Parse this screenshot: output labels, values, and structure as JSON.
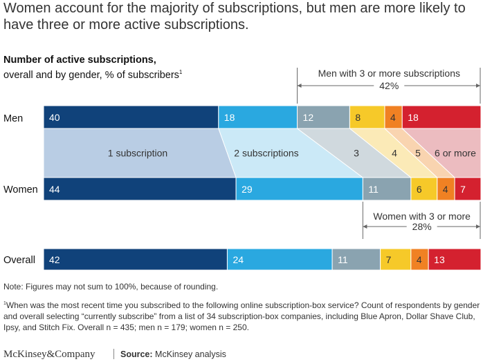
{
  "header": {
    "title": "Women account for the majority of subscriptions, but men are more likely to have three or more active subscriptions.",
    "subtitle_bold": "Number of active subscriptions,",
    "subtitle_rest": "overall and by gender,",
    "subtitle_unit": "% of subscribers",
    "subtitle_sup": "1"
  },
  "chart_data": {
    "type": "bar",
    "orientation": "horizontal",
    "stacked": true,
    "unit": "% of subscribers",
    "xlim": [
      0,
      100
    ],
    "categories": [
      "Men",
      "Women",
      "Overall"
    ],
    "series": [
      {
        "name": "1 subscription",
        "values": [
          40,
          44,
          42
        ],
        "color": "#10427a"
      },
      {
        "name": "2 subscriptions",
        "values": [
          18,
          29,
          24
        ],
        "color": "#2aa8e0"
      },
      {
        "name": "3",
        "values": [
          12,
          11,
          11
        ],
        "color": "#8aa3b0"
      },
      {
        "name": "4",
        "values": [
          8,
          6,
          7
        ],
        "color": "#f6c929"
      },
      {
        "name": "5",
        "values": [
          4,
          4,
          4
        ],
        "color": "#f08123"
      },
      {
        "name": "6 or more",
        "values": [
          18,
          7,
          13
        ],
        "color": "#d4212f"
      }
    ],
    "band_colors": [
      "#b9cde4",
      "#cbe9f7",
      "#d0d9de",
      "#fbeab7",
      "#f9d4b0",
      "#ecbcc0"
    ],
    "annotations": [
      {
        "label": "Men with 3 or more subscriptions",
        "value": "42%",
        "category": "Men"
      },
      {
        "label": "Women with 3 or more",
        "value": "28%",
        "category": "Women"
      }
    ]
  },
  "notes": {
    "note": "Note: Figures may not sum to 100%, because of rounding.",
    "footnote_marker": "1",
    "footnote": "When was the most recent time you subscribed to the following online subscription-box service? Count of respondents by gender and overall selecting “currently subscribe” from a list of 34 subscription-box companies, including Blue Apron, Dollar Shave Club, Ipsy, and Stitch Fix. Overall n = 435; men n = 179; women n = 250."
  },
  "footer": {
    "brand": "McKinsey&Company",
    "source_label": "Source:",
    "source_text": "McKinsey analysis"
  }
}
